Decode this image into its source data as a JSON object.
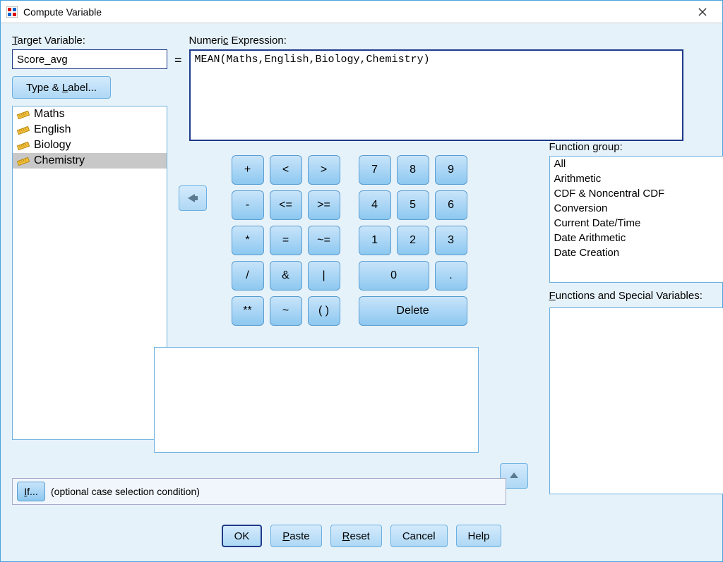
{
  "window": {
    "title": "Compute Variable"
  },
  "labels": {
    "target_variable": "Target Variable:",
    "numeric_expression": "Numeric Expression:",
    "function_group": "Function group:",
    "functions_special": "Functions and Special Variables:",
    "type_label_btn": "Type & Label...",
    "if_condition": "(optional case selection condition)",
    "if_btn": "If...",
    "equals": "="
  },
  "inputs": {
    "target_variable": "Score_avg",
    "numeric_expression": "MEAN(Maths,English,Biology,Chemistry)"
  },
  "variables": [
    {
      "name": "Maths",
      "selected": false
    },
    {
      "name": "English",
      "selected": false
    },
    {
      "name": "Biology",
      "selected": false
    },
    {
      "name": "Chemistry",
      "selected": true
    }
  ],
  "keypad": [
    [
      "+",
      "<",
      ">",
      "GAP",
      "7",
      "8",
      "9"
    ],
    [
      "-",
      "<=",
      ">=",
      "GAP",
      "4",
      "5",
      "6"
    ],
    [
      "*",
      "=",
      "~=",
      "GAP",
      "1",
      "2",
      "3"
    ],
    [
      "/",
      "&",
      "|",
      "GAP",
      "WIDE2:0",
      "."
    ],
    [
      "**",
      "~",
      "( )",
      "GAP",
      "WIDE3:Delete"
    ]
  ],
  "function_groups": [
    "All",
    "Arithmetic",
    "CDF & Noncentral CDF",
    "Conversion",
    "Current Date/Time",
    "Date Arithmetic",
    "Date Creation"
  ],
  "buttons": {
    "ok": "OK",
    "paste": "Paste",
    "reset": "Reset",
    "cancel": "Cancel",
    "help": "Help"
  },
  "colors": {
    "bg": "#e6f2fa",
    "border": "#4aa3df",
    "btn_grad_top": "#c8e4fa",
    "btn_grad_bot": "#8dc8f0"
  }
}
